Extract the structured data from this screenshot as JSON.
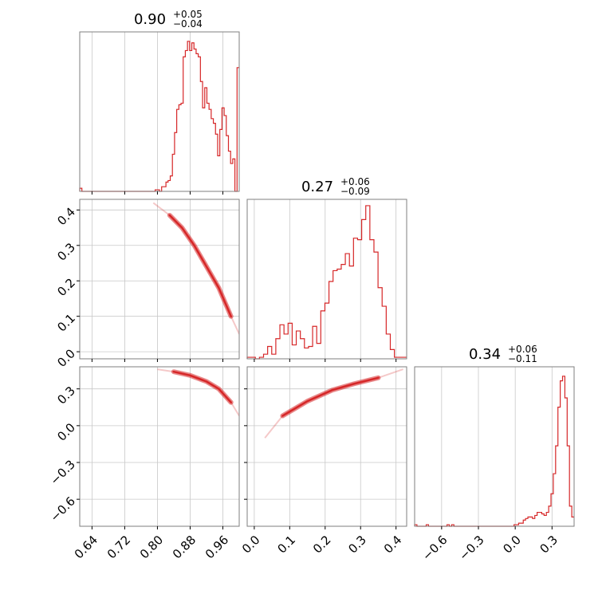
{
  "chart_data": {
    "type": "corner",
    "color": "#d62728",
    "grid": true,
    "parameters": [
      {
        "title_main": "0.90",
        "title_plus": "+0.05",
        "title_minus": "−0.04",
        "range": [
          0.61,
          1.0
        ],
        "ticks": [
          0.64,
          0.72,
          0.8,
          0.88,
          0.96
        ],
        "tick_labels": [
          "0.64",
          "0.72",
          "0.80",
          "0.88",
          "0.96"
        ],
        "hist_edges": [
          0.61,
          1.0
        ],
        "hist_counts": [
          0.02,
          0,
          0,
          0,
          0,
          0,
          0,
          0,
          0,
          0,
          0,
          0,
          0,
          0,
          0,
          0,
          0,
          0,
          0,
          0,
          0,
          0,
          0,
          0,
          0,
          0,
          0,
          0,
          0,
          0,
          0,
          0,
          0,
          0,
          0,
          0.01,
          0.01,
          0,
          0.03,
          0.03,
          0.06,
          0.07,
          0.1,
          0.24,
          0.38,
          0.53,
          0.56,
          0.57,
          0.87,
          0.91,
          0.97,
          0.91,
          0.96,
          0.92,
          0.89,
          0.87,
          0.71,
          0.54,
          0.67,
          0.57,
          0.53,
          0.47,
          0.44,
          0.37,
          0.23,
          0.4,
          0.54,
          0.49,
          0.36,
          0.26,
          0.18,
          0.21,
          0.0,
          0.8
        ]
      },
      {
        "title_main": "0.27",
        "title_plus": "+0.06",
        "title_minus": "−0.09",
        "range": [
          -0.02,
          0.43
        ],
        "ticks": [
          0.0,
          0.1,
          0.2,
          0.3,
          0.4
        ],
        "tick_labels": [
          "0.0",
          "0.1",
          "0.2",
          "0.3",
          "0.4"
        ],
        "hist_edges": [
          -0.02,
          0.43
        ],
        "hist_counts": [
          0.01,
          0.01,
          0,
          0.01,
          0.03,
          0.08,
          0.03,
          0.13,
          0.22,
          0.16,
          0.23,
          0.09,
          0.18,
          0.13,
          0.07,
          0.08,
          0.21,
          0.1,
          0.31,
          0.36,
          0.5,
          0.57,
          0.58,
          0.61,
          0.68,
          0.6,
          0.78,
          0.77,
          0.9,
          0.99,
          0.77,
          0.69,
          0.46,
          0.34,
          0.16,
          0.06,
          0.01,
          0.01,
          0.01
        ]
      },
      {
        "title_main": "0.34",
        "title_plus": "+0.06",
        "title_minus": "−0.11",
        "range": [
          -0.82,
          0.48
        ],
        "ticks": [
          -0.6,
          -0.3,
          0.0,
          0.3
        ],
        "tick_labels": [
          "−0.6",
          "−0.3",
          "0.0",
          "0.3"
        ],
        "hist_edges": [
          -0.82,
          0.48
        ],
        "hist_counts": [
          0.01,
          0,
          0,
          0,
          0,
          0.01,
          0,
          0,
          0,
          0,
          0,
          0,
          0,
          0,
          0.01,
          0,
          0.01,
          0,
          0,
          0,
          0,
          0,
          0,
          0,
          0,
          0,
          0,
          0,
          0,
          0,
          0,
          0,
          0,
          0,
          0,
          0,
          0,
          0,
          0,
          0,
          0,
          0,
          0,
          0.01,
          0.01,
          0.02,
          0.02,
          0.04,
          0.05,
          0.06,
          0.06,
          0.05,
          0.07,
          0.09,
          0.09,
          0.08,
          0.07,
          0.09,
          0.13,
          0.21,
          0.34,
          0.52,
          0.77,
          0.94,
          0.97,
          0.83,
          0.52,
          0.13,
          0.06
        ]
      }
    ],
    "y_tick_labels_row1": [
      "0.0",
      "0.1",
      "0.2",
      "0.3",
      "0.4"
    ],
    "y_tick_labels_row2": [
      "−0.6",
      "−0.3",
      "0.0",
      "0.3"
    ],
    "curves": {
      "p0_p1": [
        [
          0.79,
          0.42
        ],
        [
          0.83,
          0.385
        ],
        [
          0.86,
          0.35
        ],
        [
          0.89,
          0.3
        ],
        [
          0.92,
          0.24
        ],
        [
          0.95,
          0.18
        ],
        [
          0.98,
          0.1
        ],
        [
          1.0,
          0.05
        ]
      ],
      "p0_p2": [
        [
          0.8,
          0.46
        ],
        [
          0.84,
          0.44
        ],
        [
          0.88,
          0.41
        ],
        [
          0.92,
          0.36
        ],
        [
          0.95,
          0.3
        ],
        [
          0.98,
          0.19
        ],
        [
          1.0,
          0.08
        ]
      ],
      "p1_p2": [
        [
          0.03,
          -0.1
        ],
        [
          0.08,
          0.08
        ],
        [
          0.15,
          0.2
        ],
        [
          0.22,
          0.29
        ],
        [
          0.28,
          0.34
        ],
        [
          0.35,
          0.39
        ],
        [
          0.42,
          0.46
        ]
      ]
    }
  }
}
